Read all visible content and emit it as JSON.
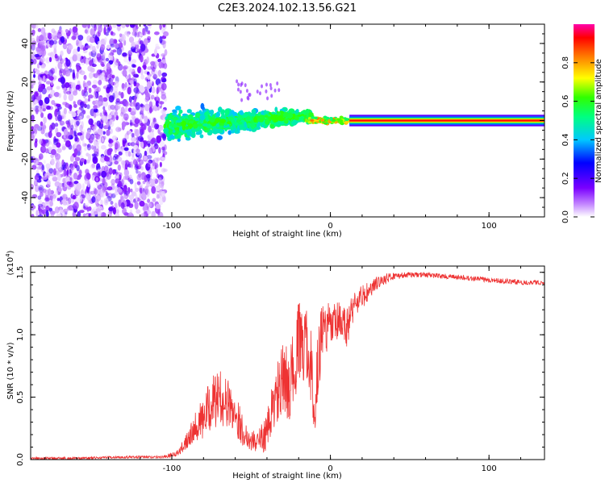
{
  "title": "C2E3.2024.102.13.56.G21",
  "chart_data": [
    {
      "type": "heatmap",
      "xlabel": "Height of straight line (km)",
      "ylabel": "Frequency (Hz)",
      "xlim": [
        -189,
        135
      ],
      "ylim": [
        -50,
        50
      ],
      "x_ticks": [
        {
          "value": -100,
          "label": "-100"
        },
        {
          "value": 0,
          "label": "0"
        },
        {
          "value": 100,
          "label": "100"
        }
      ],
      "y_ticks": [
        {
          "value": -40,
          "label": "-40"
        },
        {
          "value": -20,
          "label": "-20"
        },
        {
          "value": 0,
          "label": "0"
        },
        {
          "value": 20,
          "label": "20"
        },
        {
          "value": 40,
          "label": "40"
        }
      ],
      "colorbar": {
        "label": "Normalized spectral amplitude",
        "range": [
          0,
          1
        ],
        "ticks": [
          {
            "value": 0.0,
            "label": "0.0"
          },
          {
            "value": 0.2,
            "label": "0.2"
          },
          {
            "value": 0.4,
            "label": "0.4"
          },
          {
            "value": 0.6,
            "label": "0.6"
          },
          {
            "value": 0.8,
            "label": "0.8"
          }
        ]
      },
      "regions": [
        {
          "x_range": [
            -189,
            -104
          ],
          "freq_range": [
            -50,
            50
          ],
          "amplitude": "low, scattered noise"
        },
        {
          "x_range": [
            -104,
            -15
          ],
          "freq_range": [
            -10,
            10
          ],
          "amplitude": "medium, broadened signal"
        },
        {
          "x_range": [
            -15,
            12
          ],
          "freq_range": [
            -3,
            3
          ],
          "amplitude": "high"
        },
        {
          "x_range": [
            12,
            135
          ],
          "freq_range": [
            -2,
            2
          ],
          "amplitude": "maximum, single line"
        }
      ]
    },
    {
      "type": "line",
      "xlabel": "Height of straight line (km)",
      "ylabel": "SNR (10 * v/v)",
      "y_scale_label": "(x10",
      "y_scale_exp": "4",
      "y_scale_close": ")",
      "xlim": [
        -189,
        135
      ],
      "ylim": [
        0,
        1.55
      ],
      "x_ticks": [
        {
          "value": -100,
          "label": "-100"
        },
        {
          "value": 0,
          "label": "0"
        },
        {
          "value": 100,
          "label": "100"
        }
      ],
      "y_ticks": [
        {
          "value": 0.0,
          "label": "0.0"
        },
        {
          "value": 0.5,
          "label": "0.5"
        },
        {
          "value": 1.0,
          "label": "1.0"
        },
        {
          "value": 1.5,
          "label": "1.5"
        }
      ],
      "series": [
        {
          "color": "#ee3333",
          "x": [
            -189,
            -160,
            -130,
            -105,
            -95,
            -90,
            -85,
            -80,
            -75,
            -70,
            -65,
            -60,
            -55,
            -50,
            -45,
            -40,
            -35,
            -30,
            -25,
            -20,
            -15,
            -12,
            -10,
            -8,
            -5,
            0,
            5,
            10,
            15,
            20,
            25,
            30,
            35,
            40,
            50,
            60,
            70,
            80,
            90,
            100,
            110,
            120,
            130,
            135
          ],
          "y": [
            0.01,
            0.01,
            0.02,
            0.02,
            0.06,
            0.18,
            0.28,
            0.32,
            0.45,
            0.5,
            0.45,
            0.38,
            0.22,
            0.15,
            0.15,
            0.22,
            0.48,
            0.62,
            0.62,
            0.95,
            0.88,
            0.75,
            0.3,
            0.75,
            1.05,
            1.05,
            1.1,
            1.05,
            1.25,
            1.3,
            1.35,
            1.42,
            1.45,
            1.47,
            1.48,
            1.48,
            1.47,
            1.46,
            1.45,
            1.44,
            1.43,
            1.42,
            1.42,
            1.42
          ],
          "noise": [
            0.01,
            0.01,
            0.01,
            0.01,
            0.03,
            0.09,
            0.12,
            0.18,
            0.22,
            0.22,
            0.2,
            0.18,
            0.12,
            0.08,
            0.1,
            0.15,
            0.25,
            0.3,
            0.3,
            0.32,
            0.32,
            0.3,
            0.15,
            0.3,
            0.22,
            0.2,
            0.17,
            0.17,
            0.12,
            0.1,
            0.08,
            0.05,
            0.04,
            0.03,
            0.02,
            0.02,
            0.02,
            0.02,
            0.02,
            0.02,
            0.02,
            0.02,
            0.02,
            0.02
          ]
        }
      ]
    }
  ]
}
